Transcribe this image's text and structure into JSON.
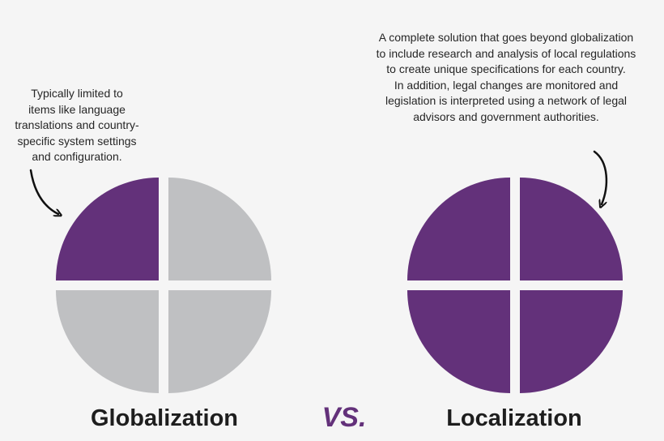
{
  "colors": {
    "background": "#f5f5f5",
    "active": "#63317a",
    "inactive": "#bfc0c2",
    "text": "#1e1e1e"
  },
  "left": {
    "caption": "Globalization",
    "note_lines": [
      "Typically limited to",
      "items like language",
      "translations and country-",
      "specific system settings",
      "and configuration."
    ],
    "quadrants_filled": [
      true,
      false,
      false,
      false
    ]
  },
  "right": {
    "caption": "Localization",
    "note_lines": [
      "A complete solution that goes beyond globalization",
      "to include research and analysis of local regulations",
      "to create unique specifications for each country.",
      "In addition, legal changes are monitored and",
      "legislation is interpreted using a network of legal",
      "advisors and government authorities."
    ],
    "quadrants_filled": [
      true,
      true,
      true,
      true
    ]
  },
  "vs_label": "VS."
}
